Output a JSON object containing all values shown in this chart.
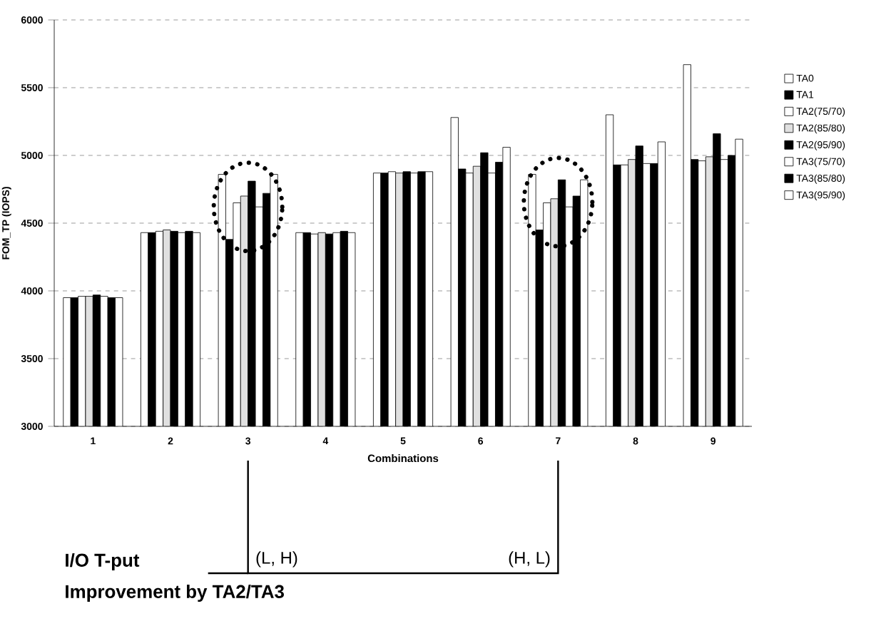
{
  "chart_data": {
    "type": "bar",
    "xlabel": "Combinations",
    "ylabel": "FOM_TP (IOPS)",
    "categories": [
      "1",
      "2",
      "3",
      "4",
      "5",
      "6",
      "7",
      "8",
      "9"
    ],
    "ylim": [
      3000,
      6000
    ],
    "yticks": [
      3000,
      3500,
      4000,
      4500,
      5000,
      5500,
      6000
    ],
    "grid": "y",
    "legend": "right",
    "series": [
      {
        "name": "TA0",
        "color": "#ffffff",
        "values": [
          3950,
          4430,
          4860,
          4430,
          4870,
          5280,
          4860,
          5300,
          5670
        ]
      },
      {
        "name": "TA1",
        "color": "#000000",
        "values": [
          3950,
          4430,
          4380,
          4430,
          4870,
          4900,
          4450,
          4930,
          4970
        ]
      },
      {
        "name": "TA2(75/70)",
        "color": "#ffffff",
        "values": [
          3960,
          4440,
          4650,
          4420,
          4880,
          4870,
          4650,
          4930,
          4960
        ]
      },
      {
        "name": "TA2(85/80)",
        "color": "#e0e0e0",
        "values": [
          3960,
          4450,
          4700,
          4430,
          4870,
          4920,
          4680,
          4970,
          4990
        ]
      },
      {
        "name": "TA2(95/90)",
        "color": "#000000",
        "values": [
          3970,
          4440,
          4810,
          4420,
          4880,
          5020,
          4820,
          5070,
          5160
        ]
      },
      {
        "name": "TA3(75/70)",
        "color": "#ffffff",
        "values": [
          3960,
          4430,
          4620,
          4430,
          4870,
          4870,
          4620,
          4940,
          4970
        ]
      },
      {
        "name": "TA3(85/80)",
        "color": "#000000",
        "values": [
          3950,
          4440,
          4720,
          4440,
          4880,
          4950,
          4700,
          4940,
          5000
        ]
      },
      {
        "name": "TA3(95/90)",
        "color": "#ffffff",
        "values": [
          3950,
          4430,
          4860,
          4430,
          4880,
          5060,
          4820,
          5100,
          5120
        ]
      }
    ],
    "annotations": [
      "I/O T-put",
      "Improvement by TA2/TA3",
      "(L, H)",
      "(H, L)"
    ]
  }
}
